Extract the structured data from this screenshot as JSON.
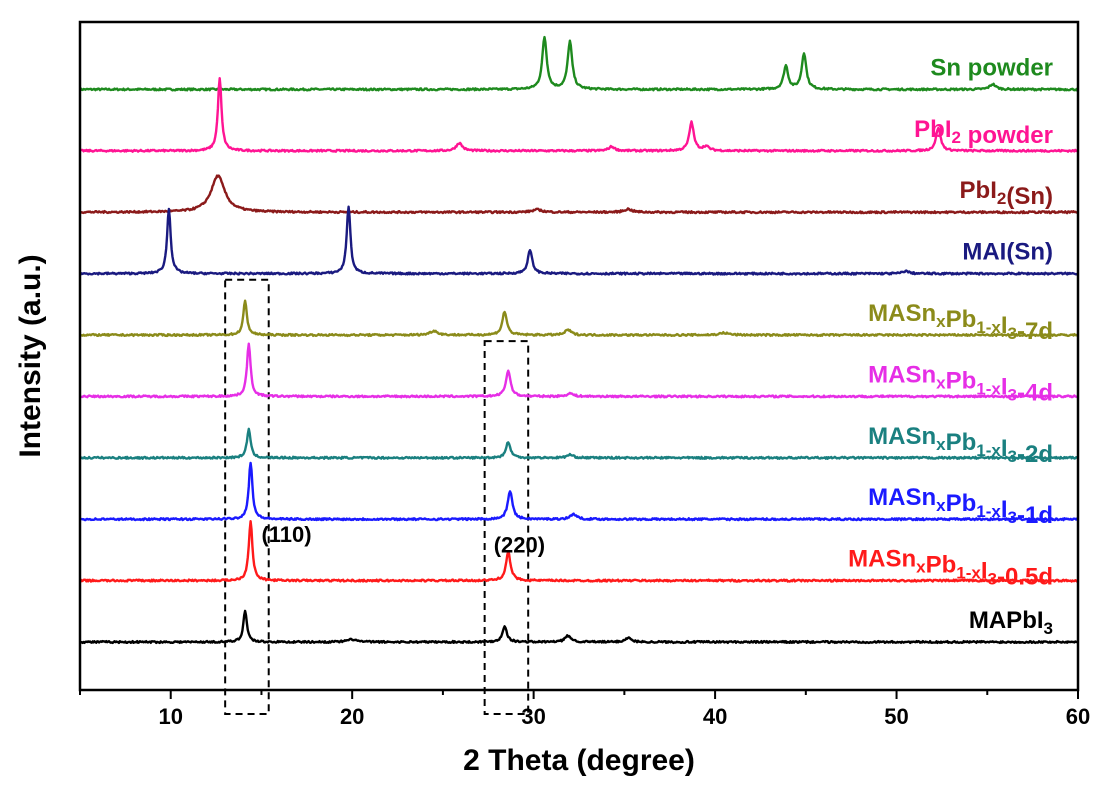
{
  "chart_data": {
    "type": "line",
    "xlabel": "2 Theta (degree)",
    "ylabel": "Intensity (a.u.)",
    "xlim": [
      5,
      60
    ],
    "x_ticks": [
      10,
      20,
      30,
      40,
      50,
      60
    ],
    "y_ticks": [],
    "grid": false,
    "series": [
      {
        "name": "Sn powder",
        "label_parts": [
          {
            "t": "Sn powder"
          }
        ],
        "color": "#1e8a1e",
        "offset": 10,
        "peaks": [
          [
            30.6,
            1.0,
            0.15
          ],
          [
            32.0,
            0.92,
            0.15
          ],
          [
            43.9,
            0.45,
            0.15
          ],
          [
            44.9,
            0.7,
            0.15
          ],
          [
            55.3,
            0.1,
            0.2
          ]
        ]
      },
      {
        "name": "PbI2 powder",
        "label_parts": [
          {
            "t": "PbI"
          },
          {
            "t": "2",
            "sub": true
          },
          {
            "t": " powder"
          }
        ],
        "color": "#ff1493",
        "offset": 9,
        "peaks": [
          [
            12.7,
            1.4,
            0.12
          ],
          [
            25.9,
            0.15,
            0.2
          ],
          [
            34.3,
            0.08,
            0.2
          ],
          [
            38.7,
            0.55,
            0.15
          ],
          [
            39.5,
            0.08,
            0.2
          ],
          [
            52.3,
            0.45,
            0.15
          ]
        ]
      },
      {
        "name": "PbI2(Sn)",
        "label_parts": [
          {
            "t": "PbI"
          },
          {
            "t": "2",
            "sub": true
          },
          {
            "t": "(Sn)"
          }
        ],
        "color": "#8b1a1a",
        "offset": 8,
        "peaks": [
          [
            12.6,
            0.7,
            0.45
          ],
          [
            30.2,
            0.05,
            0.3
          ],
          [
            35.2,
            0.06,
            0.25
          ]
        ]
      },
      {
        "name": "MAI(Sn)",
        "label_parts": [
          {
            "t": "MAI(Sn)"
          }
        ],
        "color": "#1a1a80",
        "offset": 7,
        "peaks": [
          [
            9.9,
            1.25,
            0.12
          ],
          [
            19.8,
            1.3,
            0.12
          ],
          [
            29.8,
            0.45,
            0.15
          ],
          [
            50.5,
            0.05,
            0.2
          ]
        ]
      },
      {
        "name": "MASnxPb1-xI3-7d",
        "label_parts": [
          {
            "t": "MASn"
          },
          {
            "t": "x",
            "sub": true
          },
          {
            "t": "Pb"
          },
          {
            "t": "1-x",
            "sub": true
          },
          {
            "t": "I"
          },
          {
            "t": "3",
            "sub": true
          },
          {
            "t": "-7d"
          }
        ],
        "color": "#8b8b1a",
        "offset": 6,
        "peaks": [
          [
            14.1,
            0.65,
            0.12
          ],
          [
            24.5,
            0.08,
            0.25
          ],
          [
            28.4,
            0.45,
            0.15
          ],
          [
            31.9,
            0.1,
            0.2
          ],
          [
            40.5,
            0.04,
            0.3
          ]
        ]
      },
      {
        "name": "MASnxPb1-xI3-4d",
        "label_parts": [
          {
            "t": "MASn"
          },
          {
            "t": "x",
            "sub": true
          },
          {
            "t": "Pb"
          },
          {
            "t": "1-x",
            "sub": true
          },
          {
            "t": "I"
          },
          {
            "t": "3",
            "sub": true
          },
          {
            "t": "-4d"
          }
        ],
        "color": "#e62ee6",
        "offset": 5,
        "peaks": [
          [
            14.3,
            1.0,
            0.12
          ],
          [
            28.6,
            0.5,
            0.15
          ],
          [
            32.0,
            0.06,
            0.2
          ]
        ]
      },
      {
        "name": "MASnxPb1-xI3-2d",
        "label_parts": [
          {
            "t": "MASn"
          },
          {
            "t": "x",
            "sub": true
          },
          {
            "t": "Pb"
          },
          {
            "t": "1-x",
            "sub": true
          },
          {
            "t": "I"
          },
          {
            "t": "3",
            "sub": true
          },
          {
            "t": "-2d"
          }
        ],
        "color": "#1a8080",
        "offset": 4,
        "peaks": [
          [
            14.3,
            0.55,
            0.12
          ],
          [
            28.6,
            0.3,
            0.15
          ],
          [
            32.0,
            0.06,
            0.2
          ]
        ]
      },
      {
        "name": "MASnxPb1-xI3-1d",
        "label_parts": [
          {
            "t": "MASn"
          },
          {
            "t": "x",
            "sub": true
          },
          {
            "t": "Pb"
          },
          {
            "t": "1-x",
            "sub": true
          },
          {
            "t": "I"
          },
          {
            "t": "3",
            "sub": true
          },
          {
            "t": "-1d"
          }
        ],
        "color": "#1a1aff",
        "offset": 3,
        "peaks": [
          [
            14.4,
            1.1,
            0.12
          ],
          [
            28.7,
            0.55,
            0.15
          ],
          [
            32.2,
            0.1,
            0.2
          ]
        ]
      },
      {
        "name": "MASnxPb1-xI3-0.5d",
        "label_parts": [
          {
            "t": "MASn"
          },
          {
            "t": "x",
            "sub": true
          },
          {
            "t": "Pb"
          },
          {
            "t": "1-x",
            "sub": true
          },
          {
            "t": "I"
          },
          {
            "t": "3",
            "sub": true
          },
          {
            "t": "-0.5d"
          }
        ],
        "color": "#ff1a1a",
        "offset": 2,
        "peaks": [
          [
            14.4,
            1.15,
            0.12
          ],
          [
            28.6,
            0.55,
            0.15
          ]
        ]
      },
      {
        "name": "MAPbI3",
        "label_parts": [
          {
            "t": "MAPbI"
          },
          {
            "t": "3",
            "sub": true
          }
        ],
        "color": "#000000",
        "offset": 1,
        "peaks": [
          [
            14.1,
            0.6,
            0.12
          ],
          [
            20.0,
            0.05,
            0.3
          ],
          [
            28.4,
            0.3,
            0.15
          ],
          [
            31.9,
            0.12,
            0.2
          ],
          [
            35.2,
            0.08,
            0.2
          ]
        ]
      }
    ],
    "annotations": [
      {
        "text": "(110)",
        "x": 15.0,
        "series": "MASnxPb1-xI3-0.5d",
        "dy": 0.55
      },
      {
        "text": "(220)",
        "x": 27.8,
        "series": "MASnxPb1-xI3-0.5d",
        "dy": 0.35
      }
    ],
    "highlight_boxes": [
      {
        "x0": 13.0,
        "x1": 15.4,
        "y_top": 6.9,
        "y_bottom": 0.12
      },
      {
        "x0": 27.3,
        "x1": 29.7,
        "y_top": 5.9,
        "y_bottom": 0.12
      }
    ]
  }
}
